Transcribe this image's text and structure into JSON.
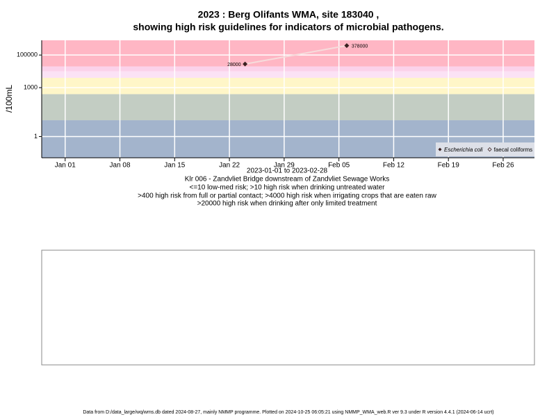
{
  "chart_data": {
    "type": "line",
    "title": "2023 : Berg Olifants WMA, site 183040 ,",
    "subtitle": "showing high risk guidelines for indicators of microbial pathogens.",
    "y_label": "/100mL",
    "x_label": "2023-01-01 to 2023-02-28",
    "notes": [
      "Klr 006 - Zandvliet Bridge downstream of Zandvliet Sewage Works",
      "<=10 low-med risk; >10 high risk when drinking untreated water",
      ">400 high risk from full or partial contact; >4000 high risk when irrigating crops that are eaten raw",
      ">20000 high risk when drinking after only limited treatment"
    ],
    "footer": "Data from D:/data_large/wq/wms.db dated 2024-08-27, mainly NMMP programme. Plotted on 2024-10-25 06:05:21 using NMMP_WMA_web.R ver 9.3 under R version 4.4.1 (2024-06-14 ucrt)",
    "log_y": true,
    "grid": true,
    "legend_position": "bottom-right",
    "xlim": [
      "2022-12-29",
      "2023-03-02"
    ],
    "ylim": [
      0.05,
      800000
    ],
    "xticks": [
      {
        "value": "2023-01-01",
        "label": "Jan 01"
      },
      {
        "value": "2023-01-08",
        "label": "Jan 08"
      },
      {
        "value": "2023-01-15",
        "label": "Jan 15"
      },
      {
        "value": "2023-01-22",
        "label": "Jan 22"
      },
      {
        "value": "2023-01-29",
        "label": "Jan 29"
      },
      {
        "value": "2023-02-05",
        "label": "Feb 05"
      },
      {
        "value": "2023-02-12",
        "label": "Feb 12"
      },
      {
        "value": "2023-02-19",
        "label": "Feb 19"
      },
      {
        "value": "2023-02-26",
        "label": "Feb 26"
      }
    ],
    "yticks": [
      1,
      1000,
      100000
    ],
    "bands": [
      {
        "from": 0.05,
        "to": 10,
        "color": "#a3b4cc"
      },
      {
        "from": 10,
        "to": 400,
        "color": "#c3cdc3"
      },
      {
        "from": 400,
        "to": 4000,
        "color": "#fff6c8"
      },
      {
        "from": 4000,
        "to": 10000,
        "color": "#fbe2f5"
      },
      {
        "from": 10000,
        "to": 20000,
        "color": "#fbd2ea"
      },
      {
        "from": 20000,
        "to": 800000,
        "color": "#ffb6c4"
      }
    ],
    "series": [
      {
        "name": "Escherichia coli",
        "color": "#3a2020",
        "line_color": "#f6dcdc",
        "x": [
          "2023-01-24",
          "2023-02-06"
        ],
        "values": [
          28000,
          378000
        ]
      },
      {
        "name": "faecal coliforms",
        "color": "#3a2020",
        "line_color": "#f6dcdc",
        "x": [],
        "values": []
      }
    ]
  }
}
